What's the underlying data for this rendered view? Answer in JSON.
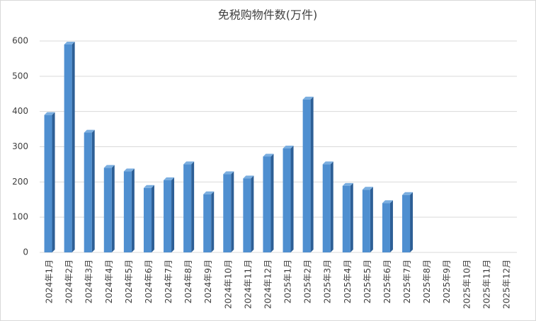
{
  "chart_data": {
    "type": "bar",
    "title": "免税购物件数(万件)",
    "categories": [
      "2024年1月",
      "2024年2月",
      "2024年3月",
      "2024年4月",
      "2024年5月",
      "2024年6月",
      "2024年7月",
      "2024年8月",
      "2024年9月",
      "2024年10月",
      "2024年11月",
      "2024年12月",
      "2025年1月",
      "2025年2月",
      "2025年3月",
      "2025年4月",
      "2025年5月",
      "2025年6月",
      "2025年7月",
      "2025年8月",
      "2025年9月",
      "2025年10月",
      "2025年11月",
      "2025年12月"
    ],
    "values": [
      390,
      590,
      340,
      240,
      230,
      183,
      205,
      250,
      165,
      222,
      210,
      272,
      295,
      434,
      250,
      189,
      178,
      140,
      163,
      null,
      null,
      null,
      null,
      null
    ],
    "color": "#4f8fd0",
    "ylim": [
      0,
      600
    ],
    "yticks": [
      0,
      100,
      200,
      300,
      400,
      500,
      600
    ],
    "grid": true
  }
}
